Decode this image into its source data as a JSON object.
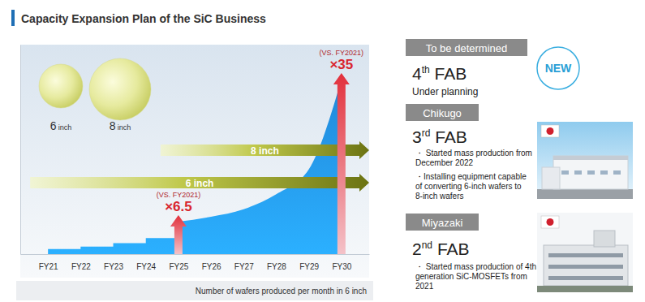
{
  "chart_data": {
    "type": "area",
    "title": "Capacity Expansion Plan of the SiC Business",
    "categories": [
      "FY21",
      "FY22",
      "FY23",
      "FY24",
      "FY25",
      "FY26",
      "FY27",
      "FY28",
      "FY29",
      "FY30"
    ],
    "values": [
      1,
      1.5,
      2.2,
      3.2,
      6.5,
      7.5,
      9,
      12,
      17,
      35
    ],
    "color": "#1f80d2",
    "ylim": [
      0,
      42
    ],
    "tick_labels": "x",
    "annotations": [
      {
        "x": "FY25",
        "note": "(VS. FY2021)",
        "text": "×6.5"
      },
      {
        "x": "FY30",
        "note": "(VS. FY2021)",
        "text": "×35"
      }
    ],
    "wafers": [
      "6 inch",
      "8 inch"
    ],
    "wafer_lines": [
      {
        "label": "8 inch",
        "start": "FY25"
      },
      {
        "label": "6 inch",
        "start": "FY21"
      }
    ],
    "footnote": "Number of wafers produced per month in 6 inch"
  },
  "fabs": [
    {
      "location": "To be determined",
      "name": "4th FAB",
      "status": [
        "Under planning"
      ],
      "badge": "NEW"
    },
    {
      "location": "Chikugo",
      "name": "3rd FAB",
      "bullets": [
        [
          "・ Started mass production from",
          "December 2022"
        ],
        [
          "・Installing equipment capable",
          "of converting 6-inch wafers to",
          "8-inch wafers"
        ]
      ]
    },
    {
      "location": "Miyazaki",
      "name": "2nd FAB",
      "bullets": [
        [
          "・ Started mass production of 4th",
          "generation SiC-MOSFETs from",
          "2021"
        ]
      ]
    }
  ]
}
